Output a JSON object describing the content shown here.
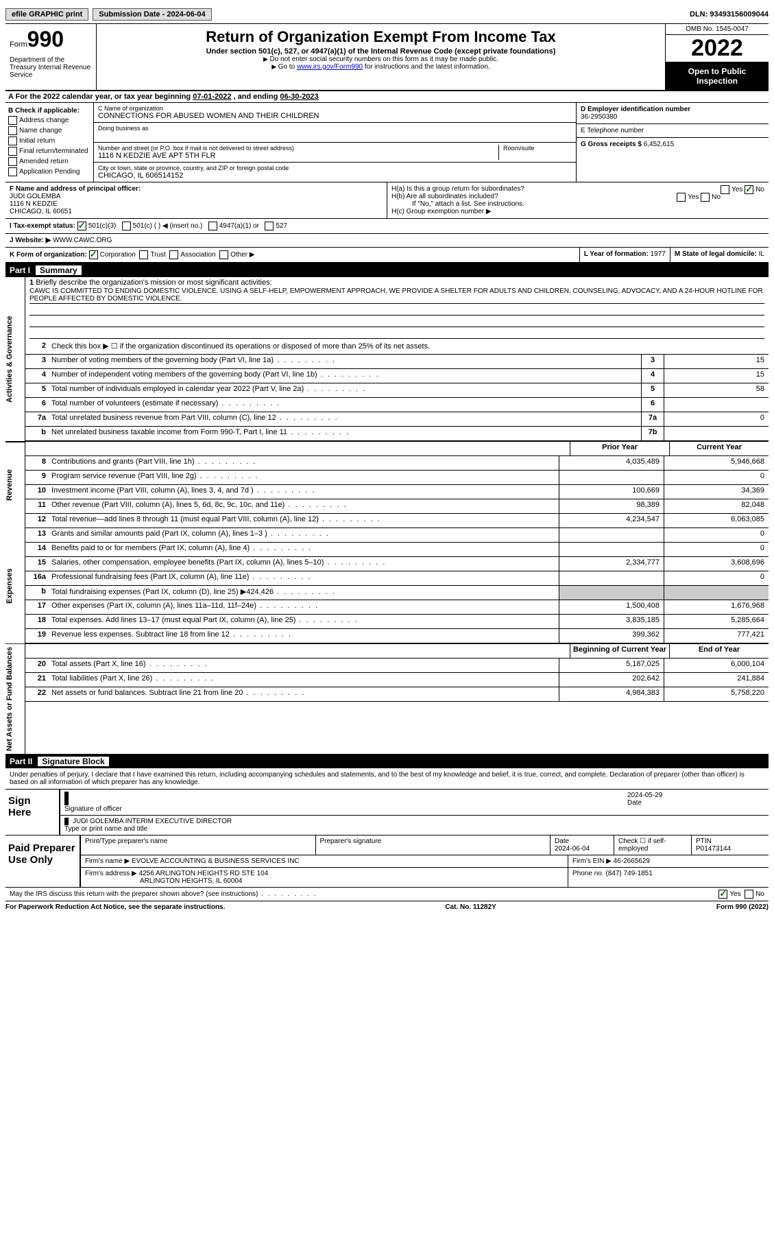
{
  "topbar": {
    "efile": "efile GRAPHIC print",
    "submission_label": "Submission Date - ",
    "submission_date": "2024-06-04",
    "dln_label": "DLN: ",
    "dln": "93493156009044"
  },
  "head": {
    "form_label": "Form",
    "form_no": "990",
    "dept": "Department of the Treasury\nInternal Revenue Service",
    "title": "Return of Organization Exempt From Income Tax",
    "subtitle": "Under section 501(c), 527, or 4947(a)(1) of the Internal Revenue Code (except private foundations)",
    "note1": "Do not enter social security numbers on this form as it may be made public.",
    "note2_pre": "Go to ",
    "note2_link": "www.irs.gov/Form990",
    "note2_post": " for instructions and the latest information.",
    "omb": "OMB No. 1545-0047",
    "year": "2022",
    "open": "Open to Public Inspection"
  },
  "A": {
    "label": "A For the 2022 calendar year, or tax year beginning ",
    "begin": "07-01-2022",
    "mid": " , and ending ",
    "end": "06-30-2023"
  },
  "B": {
    "label": "B Check if applicable:",
    "items": [
      "Address change",
      "Name change",
      "Initial return",
      "Final return/terminated",
      "Amended return",
      "Application Pending"
    ]
  },
  "C": {
    "name_label": "C Name of organization",
    "name": "CONNECTIONS FOR ABUSED WOMEN AND THEIR CHILDREN",
    "dba_label": "Doing business as",
    "addr_label": "Number and street (or P.O. box if mail is not delivered to street address)",
    "room_label": "Room/suite",
    "addr": "1116 N KEDZIE AVE APT 5TH FLR",
    "city_label": "City or town, state or province, country, and ZIP or foreign postal code",
    "city": "CHICAGO, IL  606514152"
  },
  "D": {
    "label": "D Employer identification number",
    "val": "36-2950380"
  },
  "E": {
    "label": "E Telephone number",
    "val": ""
  },
  "G": {
    "label": "G Gross receipts $ ",
    "val": "6,452,615"
  },
  "F": {
    "label": "F  Name and address of principal officer:",
    "name": "JUDI GOLEMBA",
    "addr1": "1116 N KEDZIE",
    "addr2": "CHICAGO, IL  60651"
  },
  "H": {
    "a": "H(a)  Is this a group return for subordinates?",
    "a_yes": "Yes",
    "a_no": "No",
    "b": "H(b)  Are all subordinates included?",
    "b_yes": "Yes",
    "b_no": "No",
    "b_note": "If \"No,\" attach a list. See instructions.",
    "c": "H(c)  Group exemption number ▶"
  },
  "I": {
    "label": "I  Tax-exempt status:",
    "c3": "501(c)(3)",
    "c": "501(c) (  ) ◀ (insert no.)",
    "a1": "4947(a)(1) or",
    "s27": "527"
  },
  "J": {
    "label": "J  Website: ▶",
    "val": "WWW.CAWC.ORG"
  },
  "K": {
    "label": "K Form of organization:",
    "opts": [
      "Corporation",
      "Trust",
      "Association",
      "Other ▶"
    ]
  },
  "L": {
    "label": "L Year of formation: ",
    "val": "1977"
  },
  "M": {
    "label": "M State of legal domicile: ",
    "val": "IL"
  },
  "part1": {
    "no": "Part I",
    "name": "Summary"
  },
  "s1": {
    "label_ag": "Activities & Governance",
    "l1_label": "Briefly describe the organization's mission or most significant activities:",
    "l1_text": "CAWC IS COMMITTED TO ENDING DOMESTIC VIOLENCE. USING A SELF-HELP, EMPOWERMENT APPROACH, WE PROVIDE A SHELTER FOR ADULTS AND CHILDREN, COUNSELING, ADVOCACY, AND A 24-HOUR HOTLINE FOR PEOPLE AFFECTED BY DOMESTIC VIOLENCE.",
    "l2": "Check this box ▶ ☐ if the organization discontinued its operations or disposed of more than 25% of its net assets.",
    "rows": [
      {
        "n": "3",
        "t": "Number of voting members of the governing body (Part VI, line 1a)",
        "b": "3",
        "v": "15"
      },
      {
        "n": "4",
        "t": "Number of independent voting members of the governing body (Part VI, line 1b)",
        "b": "4",
        "v": "15"
      },
      {
        "n": "5",
        "t": "Total number of individuals employed in calendar year 2022 (Part V, line 2a)",
        "b": "5",
        "v": "58"
      },
      {
        "n": "6",
        "t": "Total number of volunteers (estimate if necessary)",
        "b": "6",
        "v": ""
      },
      {
        "n": "7a",
        "t": "Total unrelated business revenue from Part VIII, column (C), line 12",
        "b": "7a",
        "v": "0"
      },
      {
        "n": "b",
        "t": "Net unrelated business taxable income from Form 990-T, Part I, line 11",
        "b": "7b",
        "v": ""
      }
    ]
  },
  "colhdr": {
    "prior": "Prior Year",
    "current": "Current Year"
  },
  "rev": {
    "label": "Revenue",
    "rows": [
      {
        "n": "8",
        "t": "Contributions and grants (Part VIII, line 1h)",
        "p": "4,035,489",
        "c": "5,946,668"
      },
      {
        "n": "9",
        "t": "Program service revenue (Part VIII, line 2g)",
        "p": "",
        "c": "0"
      },
      {
        "n": "10",
        "t": "Investment income (Part VIII, column (A), lines 3, 4, and 7d )",
        "p": "100,669",
        "c": "34,369"
      },
      {
        "n": "11",
        "t": "Other revenue (Part VIII, column (A), lines 5, 6d, 8c, 9c, 10c, and 11e)",
        "p": "98,389",
        "c": "82,048"
      },
      {
        "n": "12",
        "t": "Total revenue—add lines 8 through 11 (must equal Part VIII, column (A), line 12)",
        "p": "4,234,547",
        "c": "6,063,085"
      }
    ]
  },
  "exp": {
    "label": "Expenses",
    "rows": [
      {
        "n": "13",
        "t": "Grants and similar amounts paid (Part IX, column (A), lines 1–3 )",
        "p": "",
        "c": "0"
      },
      {
        "n": "14",
        "t": "Benefits paid to or for members (Part IX, column (A), line 4)",
        "p": "",
        "c": "0"
      },
      {
        "n": "15",
        "t": "Salaries, other compensation, employee benefits (Part IX, column (A), lines 5–10)",
        "p": "2,334,777",
        "c": "3,608,696"
      },
      {
        "n": "16a",
        "t": "Professional fundraising fees (Part IX, column (A), line 11e)",
        "p": "",
        "c": "0"
      },
      {
        "n": "b",
        "t": "Total fundraising expenses (Part IX, column (D), line 25) ▶424,426",
        "shade": true
      },
      {
        "n": "17",
        "t": "Other expenses (Part IX, column (A), lines 11a–11d, 11f–24e)",
        "p": "1,500,408",
        "c": "1,676,968"
      },
      {
        "n": "18",
        "t": "Total expenses. Add lines 13–17 (must equal Part IX, column (A), line 25)",
        "p": "3,835,185",
        "c": "5,285,664"
      },
      {
        "n": "19",
        "t": "Revenue less expenses. Subtract line 18 from line 12",
        "p": "399,362",
        "c": "777,421"
      }
    ]
  },
  "na": {
    "label": "Net Assets or Fund Balances",
    "hdr_begin": "Beginning of Current Year",
    "hdr_end": "End of Year",
    "rows": [
      {
        "n": "20",
        "t": "Total assets (Part X, line 16)",
        "p": "5,187,025",
        "c": "6,000,104"
      },
      {
        "n": "21",
        "t": "Total liabilities (Part X, line 26)",
        "p": "202,642",
        "c": "241,884"
      },
      {
        "n": "22",
        "t": "Net assets or fund balances. Subtract line 21 from line 20",
        "p": "4,984,383",
        "c": "5,758,220"
      }
    ]
  },
  "part2": {
    "no": "Part II",
    "name": "Signature Block"
  },
  "sig": {
    "penalty": "Under penalties of perjury, I declare that I have examined this return, including accompanying schedules and statements, and to the best of my knowledge and belief, it is true, correct, and complete. Declaration of preparer (other than officer) is based on all information of which preparer has any knowledge.",
    "sign_label": "Sign Here",
    "sig_of_officer": "Signature of officer",
    "sig_date": "2024-05-29",
    "date_label": "Date",
    "officer_name": "JUDI GOLEMBA  INTERIM EXECUTIVE DIRECTOR",
    "type_label": "Type or print name and title"
  },
  "prep": {
    "label": "Paid Preparer Use Only",
    "print_label": "Print/Type preparer's name",
    "sig_label": "Preparer's signature",
    "date_label": "Date",
    "date": "2024-06-04",
    "check_label": "Check ☐ if self-employed",
    "ptin_label": "PTIN",
    "ptin": "P01473144",
    "firm_name_label": "Firm's name   ▶ ",
    "firm_name": "EVOLVE ACCOUNTING & BUSINESS SERVICES INC",
    "firm_ein_label": "Firm's EIN ▶ ",
    "firm_ein": "46-2665629",
    "firm_addr_label": "Firm's address ▶ ",
    "firm_addr1": "4256 ARLINGTON HEIGHTS RD STE 104",
    "firm_addr2": "ARLINGTON HEIGHTS, IL  60004",
    "phone_label": "Phone no. ",
    "phone": "(847) 749-1851"
  },
  "foot": {
    "discuss": "May the IRS discuss this return with the preparer shown above? (see instructions)",
    "yes": "Yes",
    "no": "No",
    "pra": "For Paperwork Reduction Act Notice, see the separate instructions.",
    "cat": "Cat. No. 11282Y",
    "form": "Form 990 (2022)"
  }
}
